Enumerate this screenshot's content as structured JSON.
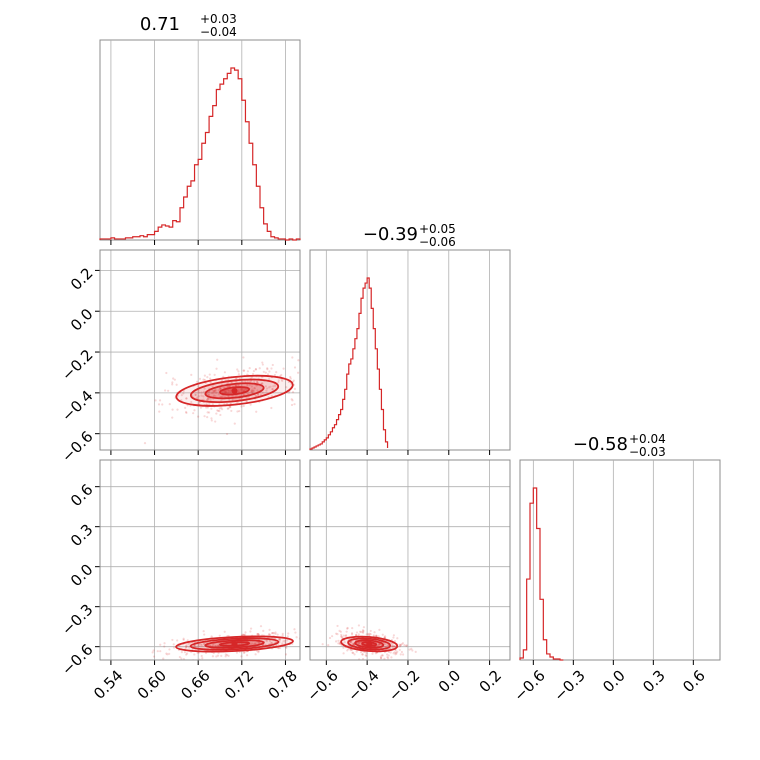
{
  "chart_data": {
    "type": "corner",
    "series_color": "#d62728",
    "grid": true,
    "parameters": [
      {
        "median": 0.71,
        "title_main": "0.71",
        "title_plus": "+0.03",
        "title_minus": "−0.04",
        "range": [
          0.525,
          0.8
        ],
        "ticks": [
          0.54,
          0.6,
          0.66,
          0.72,
          0.78
        ],
        "tick_labels": [
          "0.54",
          "0.60",
          "0.66",
          "0.72",
          "0.78"
        ]
      },
      {
        "median": -0.39,
        "title_main": "−0.39",
        "title_plus": "+0.05",
        "title_minus": "−0.06",
        "range": [
          -0.68,
          0.3
        ],
        "ticks": [
          -0.6,
          -0.4,
          -0.2,
          0.0,
          0.2
        ],
        "tick_labels": [
          "−0.6",
          "−0.4",
          "−0.2",
          "0.0",
          "0.2"
        ]
      },
      {
        "median": -0.58,
        "title_main": "−0.58",
        "title_plus": "+0.04",
        "title_minus": "−0.03",
        "range": [
          -0.7,
          0.8
        ],
        "ticks": [
          -0.6,
          -0.3,
          0.0,
          0.3,
          0.6
        ],
        "tick_labels": [
          "−0.6",
          "−0.3",
          "0.0",
          "0.3",
          "0.6"
        ]
      }
    ],
    "histograms": [
      {
        "param": 0,
        "bin_edges": [
          0.525,
          0.53,
          0.535,
          0.54,
          0.545,
          0.55,
          0.555,
          0.56,
          0.565,
          0.57,
          0.575,
          0.58,
          0.585,
          0.59,
          0.595,
          0.6,
          0.605,
          0.61,
          0.615,
          0.62,
          0.625,
          0.63,
          0.635,
          0.64,
          0.645,
          0.65,
          0.655,
          0.66,
          0.665,
          0.67,
          0.675,
          0.68,
          0.685,
          0.69,
          0.695,
          0.7,
          0.705,
          0.71,
          0.715,
          0.72,
          0.725,
          0.73,
          0.735,
          0.74,
          0.745,
          0.75,
          0.755,
          0.76,
          0.765,
          0.77,
          0.775,
          0.78,
          0.785,
          0.79,
          0.795,
          0.8
        ],
        "counts": [
          1,
          1,
          1,
          2,
          1,
          1,
          1,
          2,
          2,
          3,
          3,
          4,
          3,
          5,
          5,
          8,
          12,
          14,
          13,
          12,
          18,
          17,
          30,
          40,
          50,
          55,
          70,
          75,
          90,
          100,
          115,
          125,
          140,
          145,
          150,
          155,
          160,
          158,
          150,
          130,
          110,
          90,
          70,
          50,
          30,
          15,
          8,
          3,
          2,
          1,
          1,
          0,
          1,
          0,
          1
        ]
      },
      {
        "param": 1,
        "bin_edges": [
          -0.68,
          -0.67,
          -0.66,
          -0.65,
          -0.64,
          -0.63,
          -0.62,
          -0.61,
          -0.6,
          -0.59,
          -0.58,
          -0.57,
          -0.56,
          -0.55,
          -0.54,
          -0.53,
          -0.52,
          -0.51,
          -0.5,
          -0.49,
          -0.48,
          -0.47,
          -0.46,
          -0.45,
          -0.44,
          -0.43,
          -0.42,
          -0.41,
          -0.4,
          -0.39,
          -0.38,
          -0.37,
          -0.36,
          -0.35,
          -0.34,
          -0.33,
          -0.32,
          -0.31,
          -0.3
        ],
        "counts": [
          1,
          2,
          3,
          4,
          5,
          6,
          8,
          10,
          12,
          15,
          18,
          22,
          25,
          30,
          35,
          40,
          50,
          60,
          75,
          85,
          90,
          100,
          110,
          120,
          135,
          150,
          160,
          165,
          170,
          160,
          140,
          120,
          100,
          80,
          60,
          40,
          20,
          8,
          2
        ]
      },
      {
        "param": 2,
        "bin_edges": [
          -0.7,
          -0.675,
          -0.65,
          -0.625,
          -0.6,
          -0.575,
          -0.55,
          -0.525,
          -0.5,
          -0.475,
          -0.45,
          -0.425,
          -0.4,
          -0.375
        ],
        "counts": [
          2,
          10,
          80,
          155,
          170,
          130,
          60,
          20,
          6,
          3,
          1,
          1,
          0
        ]
      }
    ],
    "panels_2d": [
      {
        "x_param": 0,
        "y_param": 1,
        "center": [
          0.71,
          -0.39
        ],
        "sigma": [
          0.035,
          0.045
        ],
        "correlation": 0.5
      },
      {
        "x_param": 0,
        "y_param": 2,
        "center": [
          0.71,
          -0.58
        ],
        "sigma": [
          0.035,
          0.035
        ],
        "correlation": 0.45
      },
      {
        "x_param": 1,
        "y_param": 2,
        "center": [
          -0.39,
          -0.58
        ],
        "sigma": [
          0.06,
          0.035
        ],
        "correlation": -0.35
      }
    ]
  }
}
